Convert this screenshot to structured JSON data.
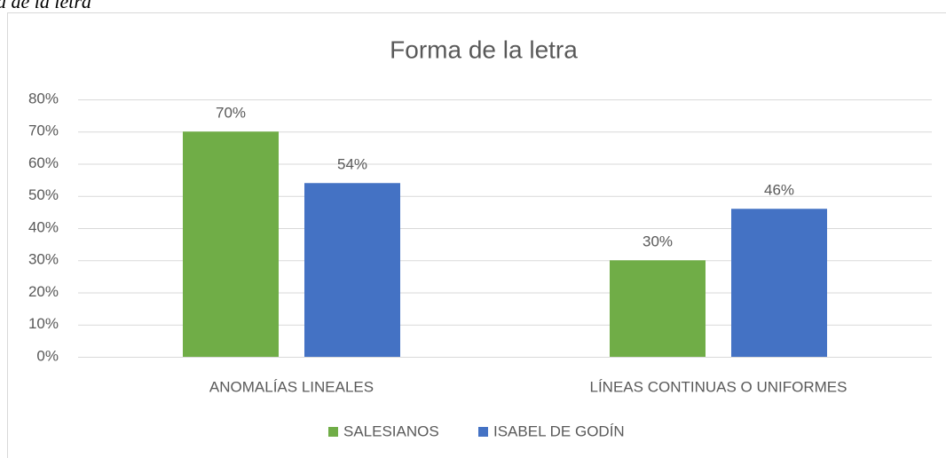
{
  "caption": "a de la letra",
  "chart_data": {
    "type": "bar",
    "title": "Forma de la letra",
    "categories": [
      "ANOMALÍAS LINEALES",
      "LÍNEAS CONTINUAS O UNIFORMES"
    ],
    "series": [
      {
        "name": "SALESIANOS",
        "color": "#70ad47",
        "values": [
          70,
          30
        ],
        "value_labels": [
          "70%",
          "30%"
        ]
      },
      {
        "name": "ISABEL DE GODÍN",
        "color": "#4472c4",
        "values": [
          54,
          46
        ],
        "value_labels": [
          "54%",
          "46%"
        ]
      }
    ],
    "ylim": [
      0,
      80
    ],
    "yticks": [
      {
        "value": 0,
        "label": "0%"
      },
      {
        "value": 10,
        "label": "10%"
      },
      {
        "value": 20,
        "label": "20%"
      },
      {
        "value": 30,
        "label": "30%"
      },
      {
        "value": 40,
        "label": "40%"
      },
      {
        "value": 50,
        "label": "50%"
      },
      {
        "value": 60,
        "label": "60%"
      },
      {
        "value": 70,
        "label": "70%"
      },
      {
        "value": 80,
        "label": "80%"
      }
    ],
    "grid": true,
    "legend": "bottom"
  }
}
